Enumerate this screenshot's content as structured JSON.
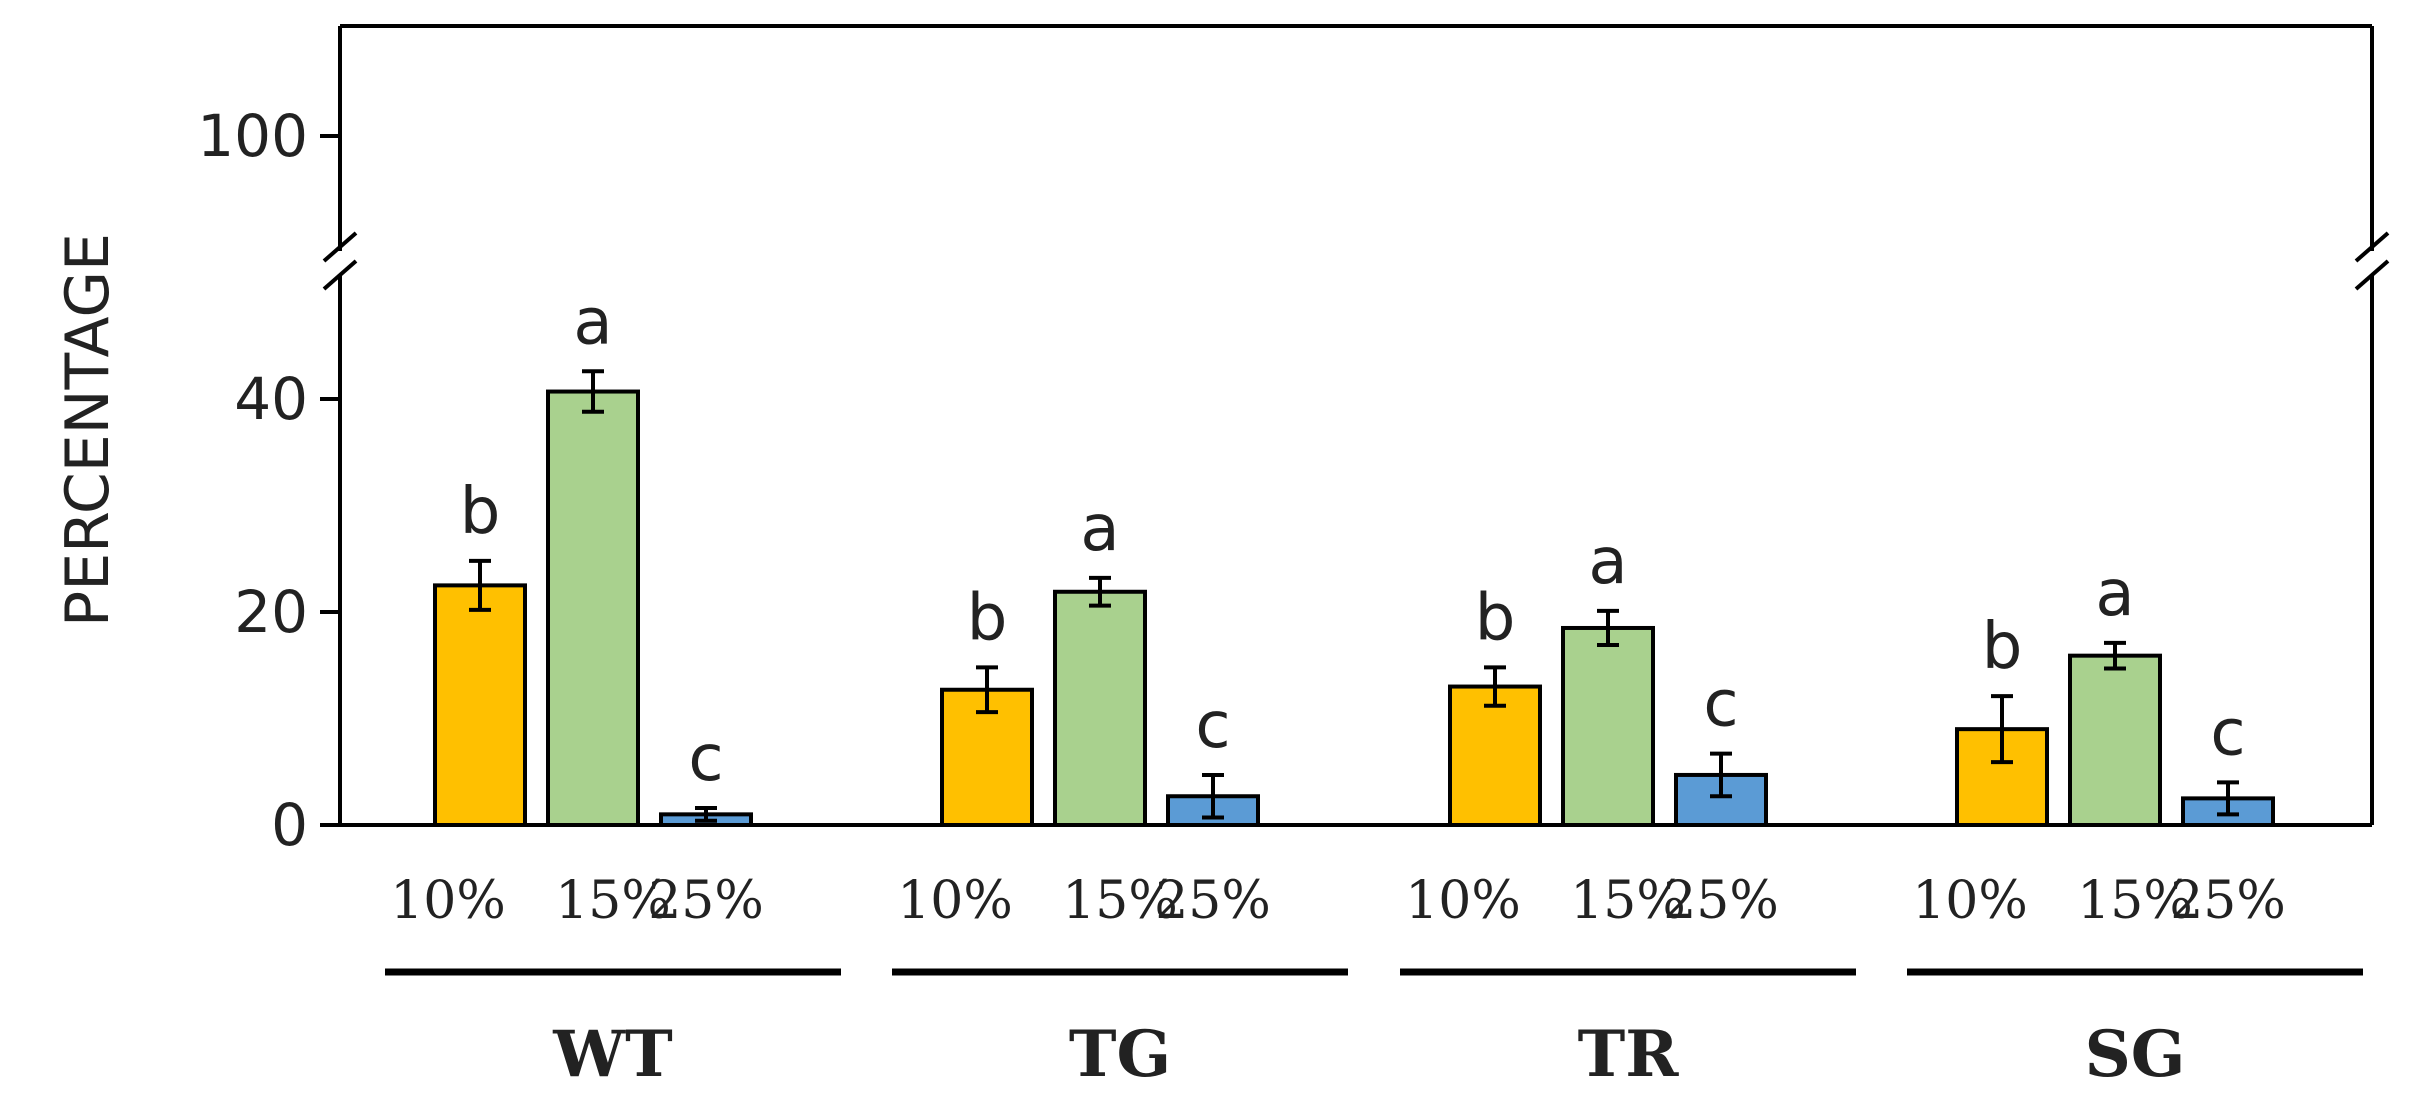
{
  "chart_data": {
    "type": "bar",
    "title": "",
    "xlabel": "",
    "ylabel": "PERCENTAGE",
    "y_ticks": [
      "0",
      "20",
      "40",
      "100"
    ],
    "y_break": true,
    "grid": false,
    "categories": [
      "10%",
      "15%",
      "25%"
    ],
    "groups": [
      {
        "name": "WT",
        "values": [
          22.5,
          40.7,
          1.0
        ],
        "errors": [
          2.3,
          1.9,
          0.6
        ],
        "letters": [
          "b",
          "a",
          "c"
        ]
      },
      {
        "name": "TG",
        "values": [
          12.7,
          21.9,
          2.7
        ],
        "errors": [
          2.1,
          1.3,
          2.0
        ],
        "letters": [
          "b",
          "a",
          "c"
        ]
      },
      {
        "name": "TR",
        "values": [
          13.0,
          18.5,
          4.7
        ],
        "errors": [
          1.8,
          1.6,
          2.0
        ],
        "letters": [
          "b",
          "a",
          "c"
        ]
      },
      {
        "name": "SG",
        "values": [
          9.0,
          15.9,
          2.5
        ],
        "errors": [
          3.1,
          1.2,
          1.5
        ],
        "letters": [
          "b",
          "a",
          "c"
        ]
      }
    ],
    "colors": [
      "#FFC000",
      "#A9D18E",
      "#5B9BD5"
    ]
  }
}
